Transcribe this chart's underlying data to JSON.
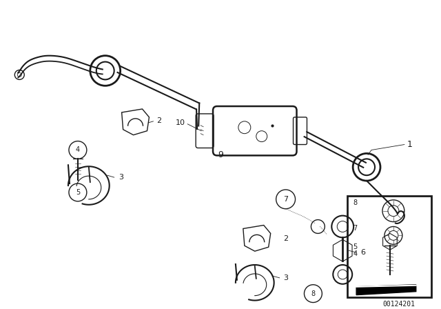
{
  "bg_color": "#ffffff",
  "line_color": "#1a1a1a",
  "fig_width": 6.4,
  "fig_height": 4.48,
  "dpi": 100,
  "watermark": "00124201",
  "lw": 1.0
}
